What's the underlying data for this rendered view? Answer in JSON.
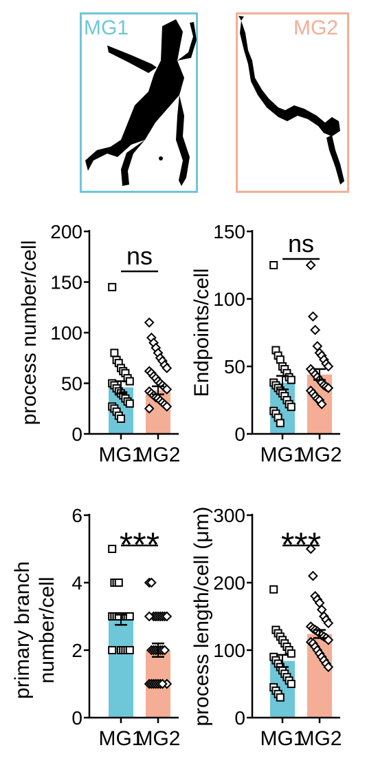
{
  "colors": {
    "mg1": "#6EC6D9",
    "mg2": "#F4AE95",
    "marker": "#000000"
  },
  "morphology": {
    "mg1_label": "MG1",
    "mg2_label": "MG2"
  },
  "chart_data": [
    {
      "type": "bar",
      "categories": [
        "MG1",
        "MG2"
      ],
      "ylabel": "process number/cell",
      "ylim": [
        0,
        200
      ],
      "yticks": [
        0,
        50,
        100,
        150,
        200
      ],
      "significance": "ns",
      "values": [
        46,
        43
      ],
      "errors": [
        6,
        4
      ],
      "points": [
        [
          145,
          80,
          73,
          70,
          65,
          62,
          60,
          55,
          52,
          50,
          48,
          45,
          42,
          40,
          38,
          35,
          32,
          30,
          27,
          25,
          22,
          18,
          15
        ],
        [
          110,
          95,
          90,
          85,
          80,
          75,
          72,
          68,
          65,
          62,
          60,
          57,
          55,
          52,
          50,
          48,
          46,
          44,
          42,
          40,
          38,
          36,
          35,
          33,
          31,
          29,
          27,
          25
        ]
      ]
    },
    {
      "type": "bar",
      "categories": [
        "MG1",
        "MG2"
      ],
      "ylabel": "Endpoints/cell",
      "ylim": [
        0,
        150
      ],
      "yticks": [
        0,
        50,
        100,
        150
      ],
      "significance": "ns",
      "values": [
        38,
        44
      ],
      "errors": [
        5,
        4
      ],
      "points": [
        [
          125,
          62,
          58,
          55,
          50,
          48,
          45,
          42,
          40,
          38,
          36,
          34,
          32,
          30,
          28,
          25,
          22,
          20,
          17,
          15,
          12,
          8
        ],
        [
          125,
          87,
          77,
          65,
          60,
          58,
          55,
          52,
          50,
          48,
          46,
          44,
          42,
          40,
          38,
          36,
          35,
          34,
          32,
          30,
          28,
          26,
          25,
          22
        ]
      ]
    },
    {
      "type": "bar",
      "categories": [
        "MG1",
        "MG2"
      ],
      "ylabel": "primary branch number/cell",
      "ylim": [
        0,
        6
      ],
      "yticks": [
        0,
        2,
        4,
        6
      ],
      "significance": "***",
      "values": [
        2.9,
        2.0
      ],
      "errors": [
        0.15,
        0.2
      ],
      "points": [
        [
          5,
          4,
          4,
          4,
          3,
          3,
          3,
          3,
          3,
          3,
          3,
          3,
          3,
          2,
          2,
          2,
          2,
          2,
          2
        ],
        [
          4,
          4,
          3,
          3,
          3,
          3,
          3,
          3,
          3,
          3,
          2,
          2,
          2,
          2,
          2,
          2,
          2,
          1,
          1,
          1,
          1,
          1,
          1,
          1,
          1
        ]
      ]
    },
    {
      "type": "bar",
      "categories": [
        "MG1",
        "MG2"
      ],
      "ylabel": "process length/cell (μm)",
      "ylim": [
        0,
        300
      ],
      "yticks": [
        0,
        100,
        200,
        300
      ],
      "significance": "***",
      "values": [
        84,
        124
      ],
      "errors": [
        9,
        6
      ],
      "points": [
        [
          190,
          130,
          125,
          120,
          115,
          110,
          105,
          100,
          95,
          90,
          85,
          80,
          75,
          70,
          65,
          60,
          55,
          50,
          45,
          40,
          35,
          30
        ],
        [
          250,
          210,
          180,
          175,
          170,
          160,
          150,
          145,
          140,
          135,
          132,
          130,
          128,
          125,
          122,
          120,
          118,
          115,
          112,
          110,
          105,
          100,
          95,
          90,
          85,
          80,
          75
        ]
      ]
    }
  ]
}
